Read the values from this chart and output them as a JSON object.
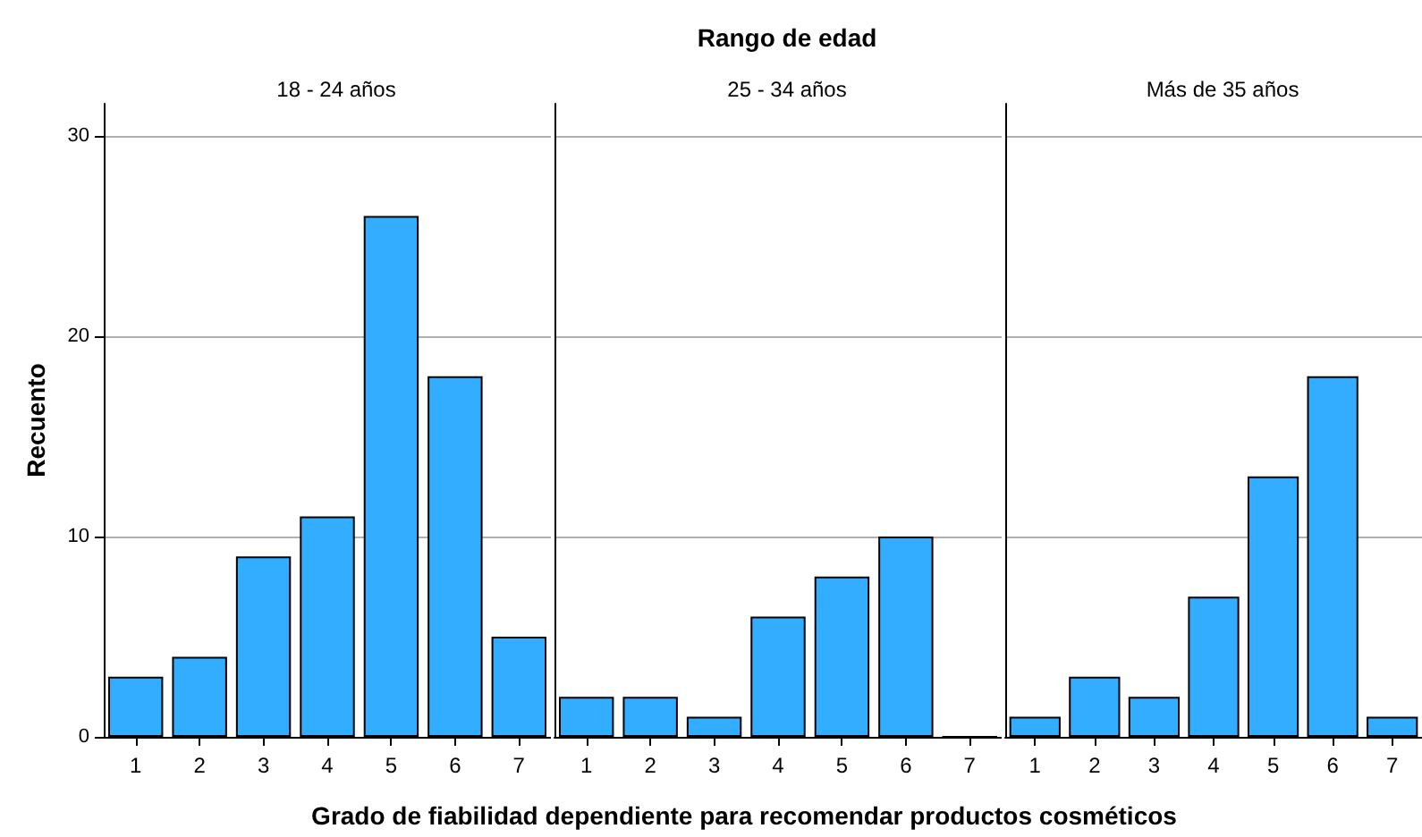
{
  "chart_data": [
    {
      "type": "bar",
      "subtitle": "18 - 24 años",
      "ylabel": "Recuento",
      "categories": [
        "1",
        "2",
        "3",
        "4",
        "5",
        "6",
        "7"
      ],
      "values": [
        3,
        4,
        9,
        11,
        26,
        18,
        5
      ],
      "color": "#33adff",
      "ylim": [
        0,
        31.6
      ],
      "yticks": [
        0,
        10,
        20,
        30
      ],
      "grid": "y"
    },
    {
      "type": "bar",
      "title": "Rango de edad",
      "subtitle": "25 - 34 años",
      "xlabel": "Grado de fiabilidad dependiente para recomendar productos cosméticos",
      "categories": [
        "1",
        "2",
        "3",
        "4",
        "5",
        "6",
        "7"
      ],
      "values": [
        2,
        2,
        1,
        6,
        8,
        10,
        0
      ],
      "color": "#33adff",
      "ylim": [
        0,
        31.6
      ],
      "yticks": [
        0,
        10,
        20,
        30
      ],
      "grid": "y",
      "tick_labels": "x"
    },
    {
      "type": "bar",
      "subtitle": "Más de 35 años",
      "categories": [
        "1",
        "2",
        "3",
        "4",
        "5",
        "6",
        "7"
      ],
      "values": [
        1,
        3,
        2,
        7,
        13,
        18,
        1
      ],
      "color": "#33adff",
      "ylim": [
        0,
        31.6
      ],
      "yticks": [
        0,
        10,
        20,
        30
      ],
      "grid": "y",
      "tick_labels": "x"
    }
  ]
}
